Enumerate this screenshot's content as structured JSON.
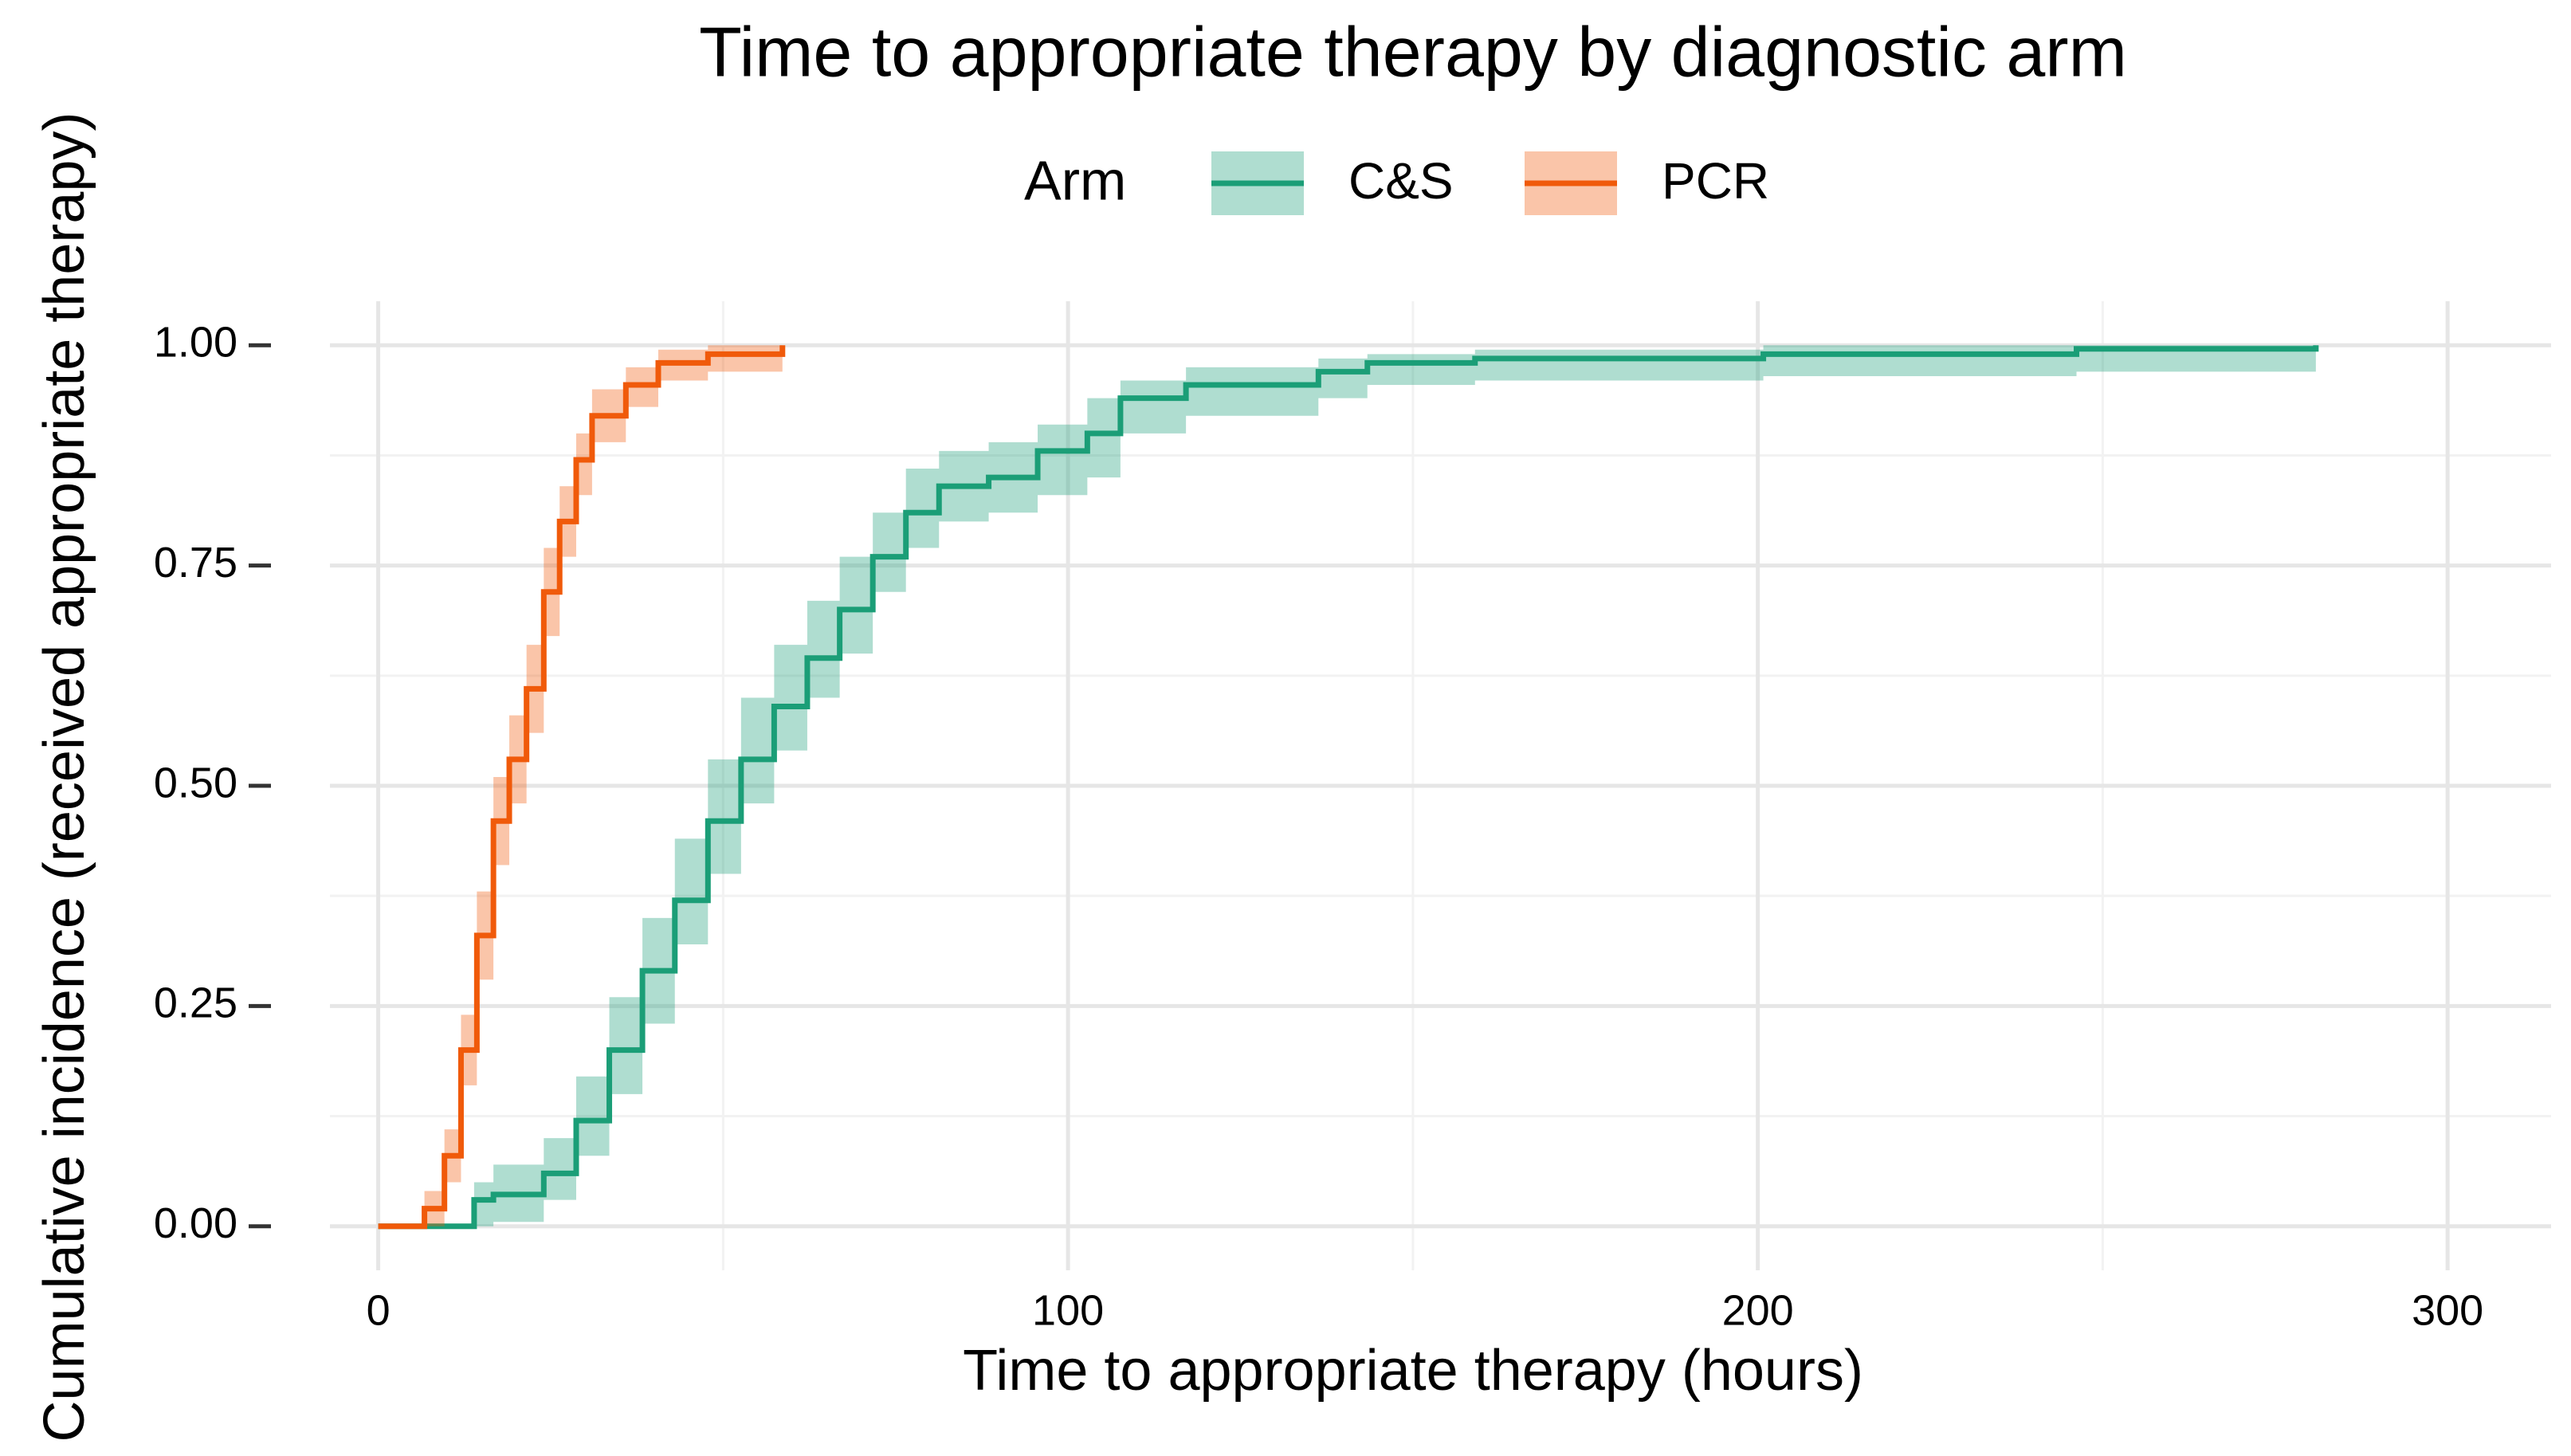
{
  "chart_data": {
    "type": "step",
    "title": "Time to appropriate therapy by diagnostic arm",
    "x_label": "Time to appropriate therapy (hours)",
    "y_label": "Cumulative incidence (received appropriate therapy)",
    "legend_title": "Arm",
    "legend_position": "top",
    "grid": true,
    "xlim": [
      -7,
      315
    ],
    "ylim": [
      -0.05,
      1.05
    ],
    "xticks": [
      0,
      100,
      200,
      300
    ],
    "yticks": [
      {
        "value": 0,
        "label": "0.00"
      },
      {
        "value": 0.25,
        "label": "0.25"
      },
      {
        "value": 0.5,
        "label": "0.50"
      },
      {
        "value": 0.75,
        "label": "0.75"
      },
      {
        "value": 1,
        "label": "1.00"
      }
    ],
    "series": [
      {
        "name": "C&S",
        "color": "#1b9e77",
        "x": [
          0,
          13.9,
          16.7,
          24,
          28.7,
          33.5,
          38.3,
          43,
          47.8,
          52.6,
          57.4,
          62.2,
          66.9,
          71.7,
          76.5,
          81.3,
          88.5,
          95.6,
          102.8,
          107.6,
          117.1,
          136.3,
          143.4,
          159,
          200.8,
          246.2,
          280.9
        ],
        "values": [
          0,
          0.03,
          0.036,
          0.06,
          0.12,
          0.2,
          0.29,
          0.37,
          0.46,
          0.53,
          0.59,
          0.645,
          0.7,
          0.76,
          0.81,
          0.84,
          0.85,
          0.88,
          0.9,
          0.94,
          0.955,
          0.97,
          0.98,
          0.985,
          0.99,
          0.996,
          1
        ],
        "lower": [
          0,
          0,
          0.005,
          0.03,
          0.08,
          0.15,
          0.23,
          0.32,
          0.4,
          0.48,
          0.54,
          0.6,
          0.65,
          0.72,
          0.77,
          0.8,
          0.81,
          0.83,
          0.85,
          0.9,
          0.92,
          0.94,
          0.955,
          0.96,
          0.965,
          0.97,
          0.96
        ],
        "upper": [
          0,
          0.05,
          0.07,
          0.1,
          0.17,
          0.26,
          0.35,
          0.44,
          0.53,
          0.6,
          0.66,
          0.71,
          0.76,
          0.81,
          0.86,
          0.88,
          0.89,
          0.91,
          0.94,
          0.96,
          0.975,
          0.985,
          0.99,
          0.995,
          1,
          1,
          1
        ]
      },
      {
        "name": "PCR",
        "color": "#f05a0a",
        "x": [
          0,
          6.7,
          9.6,
          12,
          14.3,
          16.7,
          19,
          21.5,
          24,
          26.3,
          28.7,
          31,
          35.9,
          40.6,
          47.8,
          58.6
        ],
        "values": [
          0,
          0.02,
          0.08,
          0.2,
          0.33,
          0.46,
          0.53,
          0.61,
          0.72,
          0.8,
          0.87,
          0.92,
          0.955,
          0.98,
          0.99,
          1
        ],
        "lower": [
          0,
          0,
          0.05,
          0.16,
          0.28,
          0.41,
          0.48,
          0.56,
          0.67,
          0.76,
          0.83,
          0.89,
          0.93,
          0.96,
          0.97,
          0.97
        ],
        "upper": [
          0,
          0.04,
          0.11,
          0.24,
          0.38,
          0.51,
          0.58,
          0.66,
          0.77,
          0.84,
          0.9,
          0.95,
          0.975,
          0.995,
          1,
          1
        ]
      }
    ]
  }
}
